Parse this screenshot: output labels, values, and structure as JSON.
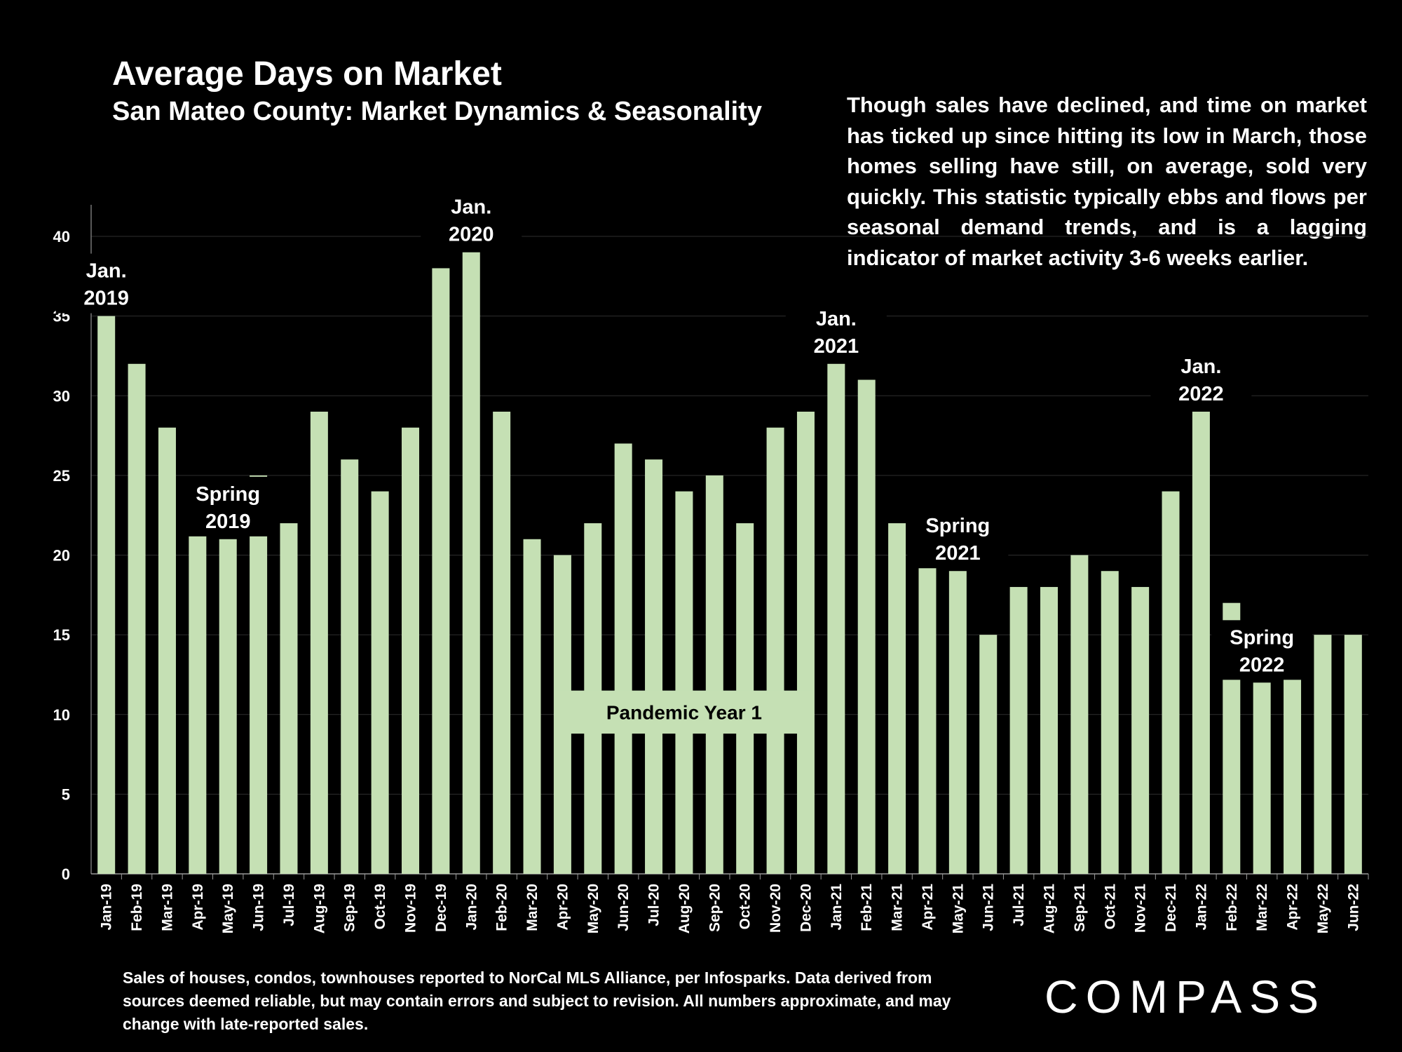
{
  "header": {
    "title": "Average Days on Market",
    "subtitle": "San Mateo County: Market Dynamics & Seasonality"
  },
  "commentary": "Though sales have declined, and time on market has ticked up since hitting its low in March, those homes selling have still, on average, sold very quickly. This statistic typically ebbs and flows per seasonal demand trends, and is a lagging indicator of market activity 3-6 weeks earlier.",
  "footnote": "Sales of houses, condos, townhouses reported to NorCal MLS Alliance, per Infosparks. Data derived from sources deemed reliable, but may contain errors and subject to revision. All numbers approximate, and may change with late-reported sales.",
  "logo": {
    "text": "COMPASS"
  },
  "colors": {
    "background": "#000000",
    "bar": "#c5e0b4",
    "grid": "#2e2e2e",
    "text": "#ffffff"
  },
  "chart_data": {
    "type": "bar",
    "title": "Average Days on Market",
    "subtitle": "San Mateo County: Market Dynamics & Seasonality",
    "categories": [
      "Jan-19",
      "Feb-19",
      "Mar-19",
      "Apr-19",
      "May-19",
      "Jun-19",
      "Jul-19",
      "Aug-19",
      "Sep-19",
      "Oct-19",
      "Nov-19",
      "Dec-19",
      "Jan-20",
      "Feb-20",
      "Mar-20",
      "Apr-20",
      "May-20",
      "Jun-20",
      "Jul-20",
      "Aug-20",
      "Sep-20",
      "Oct-20",
      "Nov-20",
      "Dec-20",
      "Jan-21",
      "Feb-21",
      "Mar-21",
      "Apr-21",
      "May-21",
      "Jun-21",
      "Jul-21",
      "Aug-21",
      "Sep-21",
      "Oct-21",
      "Nov-21",
      "Dec-21",
      "Jan-22",
      "Feb-22",
      "Mar-22",
      "Apr-22",
      "May-22",
      "Jun-22"
    ],
    "values": [
      35,
      32,
      28,
      22,
      21,
      25,
      22,
      29,
      26,
      24,
      28,
      38,
      39,
      29,
      21,
      20,
      22,
      27,
      26,
      24,
      25,
      22,
      28,
      29,
      32,
      31,
      22,
      21,
      19,
      15,
      18,
      18,
      20,
      19,
      18,
      24,
      29,
      17,
      12,
      13,
      15,
      15
    ],
    "ylim": [
      0,
      40
    ],
    "yticks": [
      0,
      5,
      10,
      15,
      20,
      25,
      30,
      35,
      40
    ],
    "grid": true,
    "legend": "none",
    "xlabel": "",
    "ylabel": "",
    "annotations": [
      {
        "lines": [
          "Jan.",
          "2019"
        ],
        "category": "Jan-19"
      },
      {
        "lines": [
          "Spring",
          "2019"
        ],
        "category": "May-19"
      },
      {
        "lines": [
          "Jan.",
          "2020"
        ],
        "category": "Jan-20"
      },
      {
        "lines": [
          "Jan.",
          "2021"
        ],
        "category": "Jan-21"
      },
      {
        "lines": [
          "Spring",
          "2021"
        ],
        "category": "May-21"
      },
      {
        "lines": [
          "Jan.",
          "2022"
        ],
        "category": "Jan-22"
      },
      {
        "lines": [
          "Spring",
          "2022"
        ],
        "category": "Mar-22"
      }
    ],
    "band_label": {
      "text": "Pandemic Year 1",
      "from": "Apr-20",
      "to": "Dec-20"
    }
  }
}
